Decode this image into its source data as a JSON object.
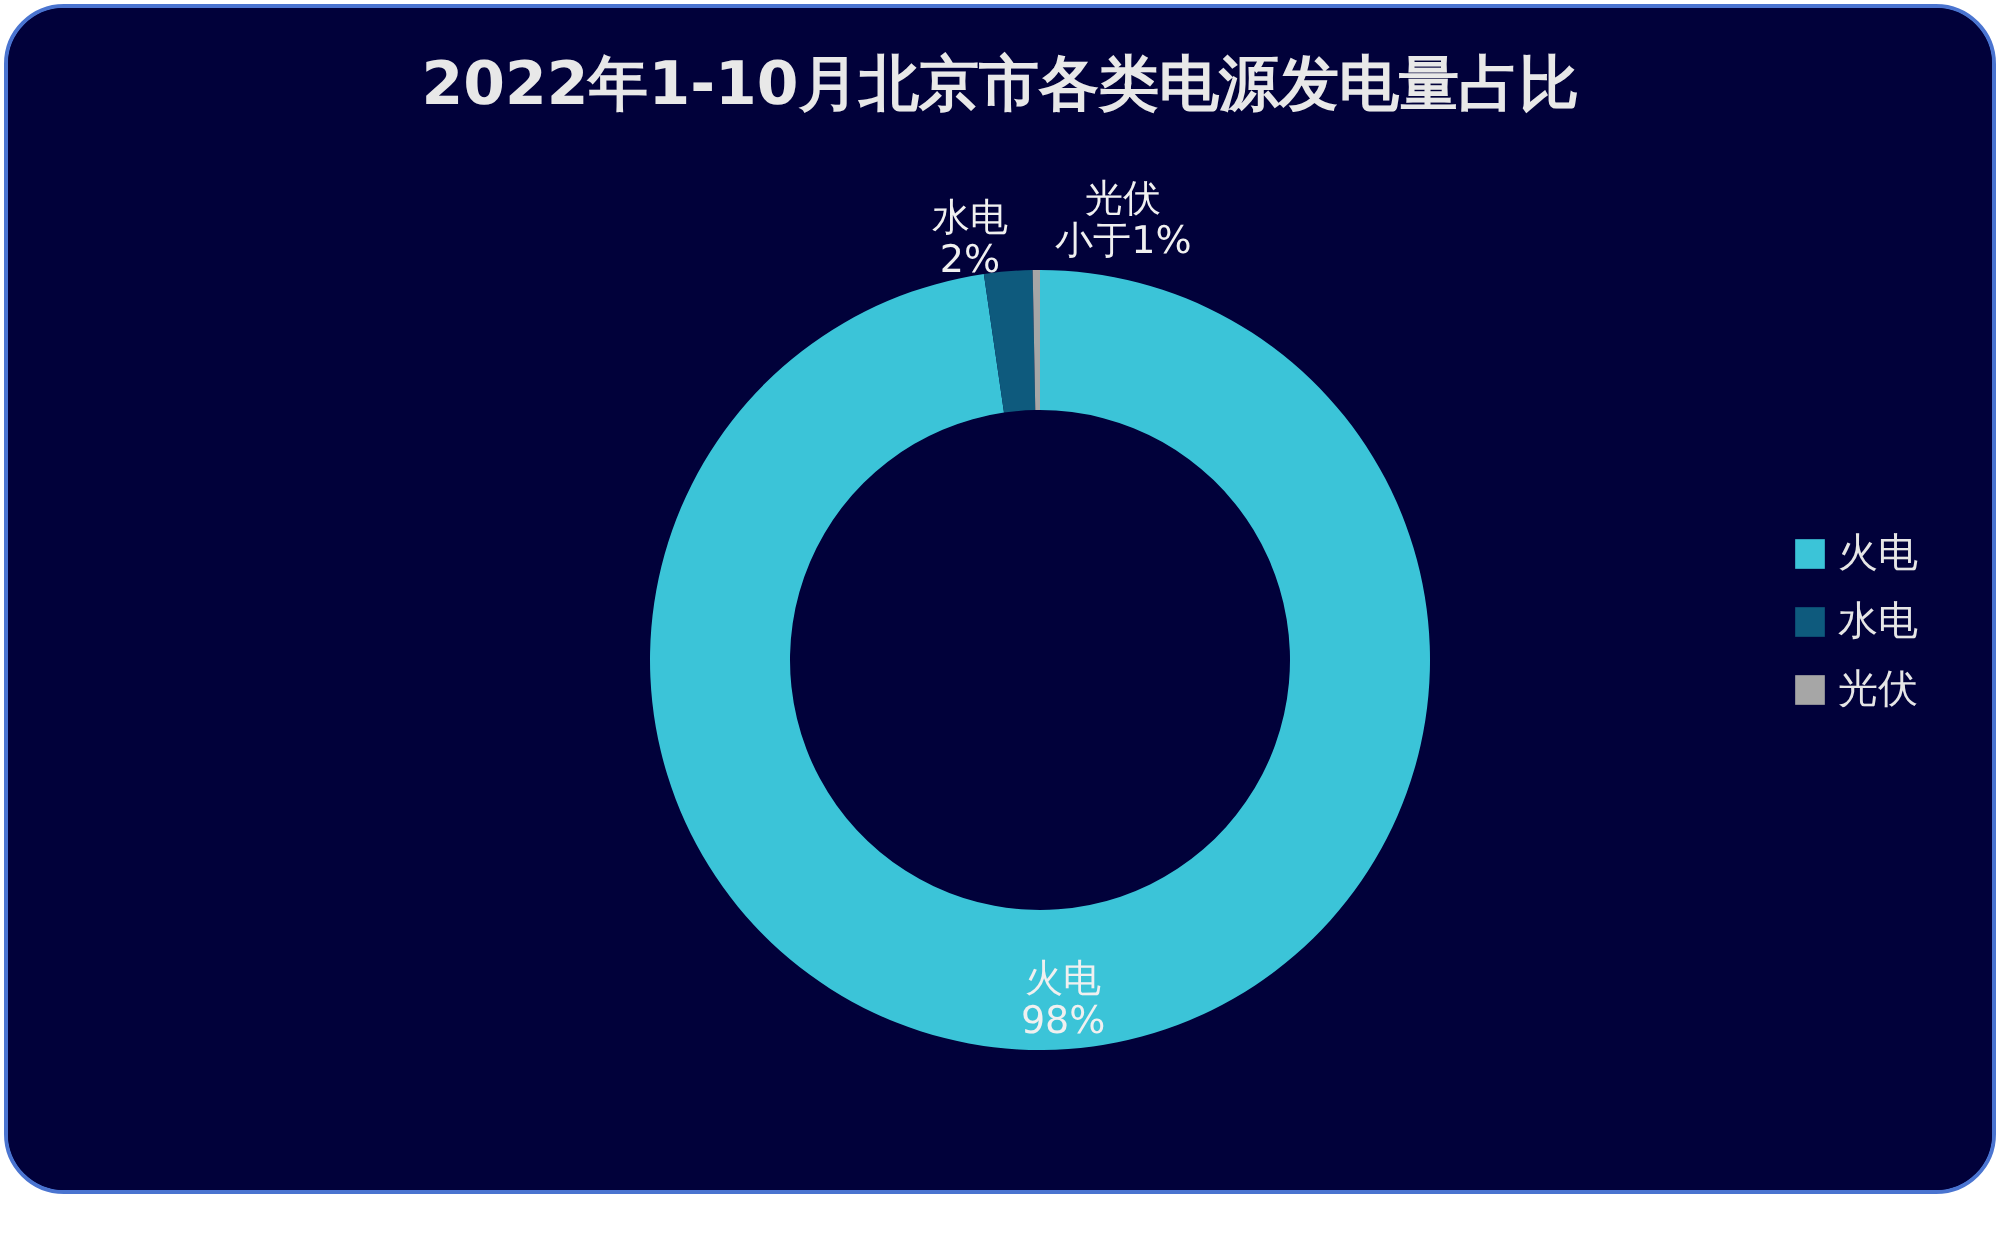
{
  "chart_data": {
    "type": "donut",
    "title": "2022年1-10月北京市各类电源发电量占比",
    "categories": [
      "火电",
      "水电",
      "光伏"
    ],
    "values": [
      97.7,
      2,
      0.3
    ],
    "value_labels": [
      "98%",
      "2%",
      "小于1%"
    ],
    "colors": [
      "#3bc4d8",
      "#0e5a7d",
      "#a6a6a6"
    ],
    "legend": "right"
  }
}
